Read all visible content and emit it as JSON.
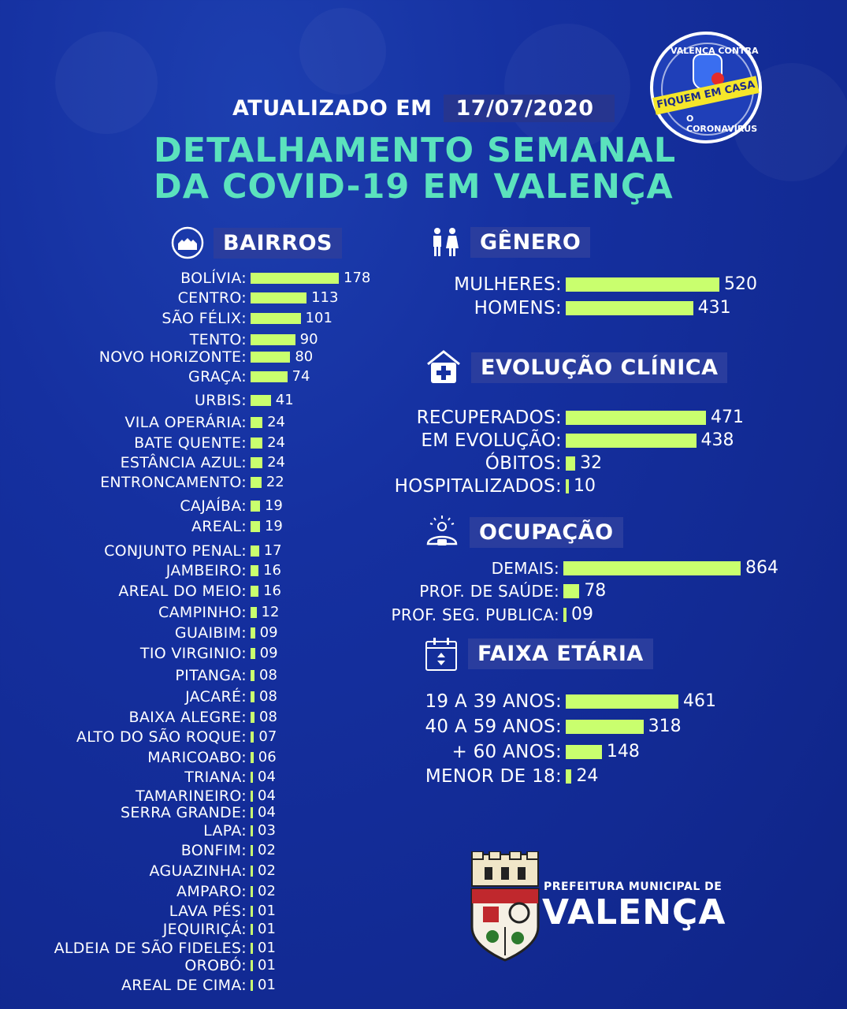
{
  "updated_label": "ATUALIZADO EM",
  "updated_date": "17/07/2020",
  "headline_line1": "DETALHAMENTO SEMANAL",
  "headline_line2": "DA COVID-19 EM VALENÇA",
  "badge": {
    "top": "VALENÇA CONTRA",
    "banner": "FIQUEM EM CASA",
    "bottom": "O CORONAVÍRUS"
  },
  "sections": {
    "bairros": "BAIRROS",
    "genero": "GÊNERO",
    "evolucao": "EVOLUÇÃO CLÍNICA",
    "ocupacao": "OCUPAÇÃO",
    "faixa": "FAIXA ETÁRIA"
  },
  "logo": {
    "line1": "PREFEITURA MUNICIPAL DE",
    "line2": "VALENÇA"
  },
  "colors": {
    "bar": "#c9ff6e",
    "headline": "#5be2bd",
    "section_bg": "#2a3d9e"
  },
  "chart_data": [
    {
      "type": "bar",
      "title": "BAIRROS",
      "categories": [
        "BOLÍVIA:",
        "CENTRO:",
        "SÃO FÉLIX:",
        "TENTO:",
        "NOVO HORIZONTE:",
        "GRAÇA:",
        "URBIS:",
        "VILA OPERÁRIA:",
        "BATE QUENTE:",
        "ESTÂNCIA AZUL:",
        "ENTRONCAMENTO:",
        "CAJAÍBA:",
        "AREAL:",
        "CONJUNTO PENAL:",
        "JAMBEIRO:",
        "AREAL DO MEIO:",
        "CAMPINHO:",
        "GUAIBIM:",
        "TIO VIRGINIO:",
        "PITANGA:",
        "JACARÉ:",
        "BAIXA ALEGRE:",
        "ALTO DO SÃO ROQUE:",
        "MARICOABO:",
        "TRIANA:",
        "TAMARINEIRO:",
        "SERRA GRANDE:",
        "LAPA:",
        "BONFIM:",
        "AGUAZINHA:",
        "AMPARO:",
        "LAVA PÉS:",
        "JEQUIRIÇÁ:",
        "ALDEIA DE SÃO FIDELES:",
        "OROBÓ:",
        "AREAL DE CIMA:"
      ],
      "values": [
        178,
        113,
        101,
        90,
        80,
        74,
        41,
        24,
        24,
        24,
        22,
        19,
        19,
        17,
        16,
        16,
        12,
        9,
        9,
        8,
        8,
        8,
        7,
        6,
        4,
        4,
        4,
        3,
        2,
        2,
        2,
        1,
        1,
        1,
        1,
        1
      ],
      "labels": [
        "178",
        "113",
        "101",
        "90",
        "80",
        "74",
        "41",
        "24",
        "24",
        "24",
        "22",
        "19",
        "19",
        "17",
        "16",
        "16",
        "12",
        "09",
        "09",
        "08",
        "08",
        "08",
        "07",
        "06",
        "04",
        "04",
        "04",
        "03",
        "02",
        "02",
        "02",
        "01",
        "01",
        "01",
        "01",
        "01"
      ]
    },
    {
      "type": "bar",
      "title": "GÊNERO",
      "categories": [
        "MULHERES:",
        "HOMENS:"
      ],
      "values": [
        520,
        431
      ],
      "labels": [
        "520",
        "431"
      ]
    },
    {
      "type": "bar",
      "title": "EVOLUÇÃO CLÍNICA",
      "categories": [
        "RECUPERADOS:",
        "EM EVOLUÇÃO:",
        "ÓBITOS:",
        "HOSPITALIZADOS:"
      ],
      "values": [
        471,
        438,
        32,
        10
      ],
      "labels": [
        "471",
        "438",
        "32",
        "10"
      ]
    },
    {
      "type": "bar",
      "title": "OCUPAÇÃO",
      "categories": [
        "DEMAIS:",
        "PROF. DE SAÚDE:",
        "PROF. SEG. PUBLICA:"
      ],
      "values": [
        864,
        78,
        9
      ],
      "labels": [
        "864",
        "78",
        "09"
      ]
    },
    {
      "type": "bar",
      "title": "FAIXA ETÁRIA",
      "categories": [
        "19 A 39 ANOS:",
        "40 A 59 ANOS:",
        "+ 60 ANOS:",
        "MENOR DE 18:"
      ],
      "values": [
        461,
        318,
        148,
        24
      ],
      "labels": [
        "461",
        "318",
        "148",
        "24"
      ]
    }
  ]
}
